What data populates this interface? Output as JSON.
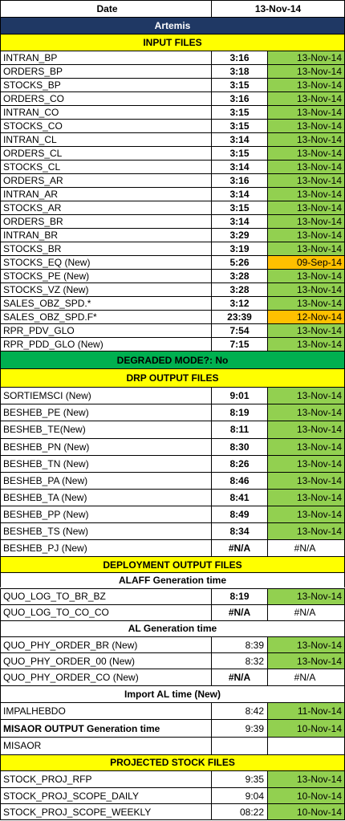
{
  "header": {
    "date_label": "Date",
    "date_value": "13-Nov-14"
  },
  "section_title": "Artemis",
  "input_files": {
    "title": "INPUT FILES",
    "rows": [
      {
        "name": "INTRAN_BP",
        "time": "3:16",
        "date": "13-Nov-14",
        "status": "ok"
      },
      {
        "name": "ORDERS_BP",
        "time": "3:18",
        "date": "13-Nov-14",
        "status": "ok"
      },
      {
        "name": "STOCKS_BP",
        "time": "3:15",
        "date": "13-Nov-14",
        "status": "ok"
      },
      {
        "name": "ORDERS_CO",
        "time": "3:16",
        "date": "13-Nov-14",
        "status": "ok"
      },
      {
        "name": "INTRAN_CO",
        "time": "3:15",
        "date": "13-Nov-14",
        "status": "ok"
      },
      {
        "name": "STOCKS_CO",
        "time": "3:15",
        "date": "13-Nov-14",
        "status": "ok"
      },
      {
        "name": "INTRAN_CL",
        "time": "3:14",
        "date": "13-Nov-14",
        "status": "ok"
      },
      {
        "name": "ORDERS_CL",
        "time": "3:15",
        "date": "13-Nov-14",
        "status": "ok"
      },
      {
        "name": "STOCKS_CL",
        "time": "3:14",
        "date": "13-Nov-14",
        "status": "ok"
      },
      {
        "name": "ORDERS_AR",
        "time": "3:16",
        "date": "13-Nov-14",
        "status": "ok"
      },
      {
        "name": "INTRAN_AR",
        "time": "3:14",
        "date": "13-Nov-14",
        "status": "ok"
      },
      {
        "name": "STOCKS_AR",
        "time": "3:15",
        "date": "13-Nov-14",
        "status": "ok"
      },
      {
        "name": "ORDERS_BR",
        "time": "3:14",
        "date": "13-Nov-14",
        "status": "ok"
      },
      {
        "name": "INTRAN_BR",
        "time": "3:29",
        "date": "13-Nov-14",
        "status": "ok"
      },
      {
        "name": "STOCKS_BR",
        "time": "3:19",
        "date": "13-Nov-14",
        "status": "ok"
      },
      {
        "name": "STOCKS_EQ (New)",
        "time": "5:26",
        "date": "09-Sep-14",
        "status": "warn"
      },
      {
        "name": "STOCKS_PE (New)",
        "time": "3:28",
        "date": "13-Nov-14",
        "status": "ok"
      },
      {
        "name": "STOCKS_VZ (New)",
        "time": "3:28",
        "date": "13-Nov-14",
        "status": "ok"
      },
      {
        "name": "SALES_OBZ_SPD.*",
        "time": "3:12",
        "date": "13-Nov-14",
        "status": "ok"
      },
      {
        "name": "SALES_OBZ_SPD.F*",
        "time": "23:39",
        "date": "12-Nov-14",
        "status": "warn"
      },
      {
        "name": "RPR_PDV_GLO",
        "time": "7:54",
        "date": "13-Nov-14",
        "status": "ok"
      },
      {
        "name": "RPR_PDD_GLO (New)",
        "time": "7:15",
        "date": "13-Nov-14",
        "status": "ok"
      }
    ]
  },
  "degraded_mode": "DEGRADED MODE?: No",
  "drp_output": {
    "title": "DRP OUTPUT FILES",
    "rows": [
      {
        "name": "SORTIEMSCI (New)",
        "time": "9:01",
        "date": "13-Nov-14",
        "status": "ok"
      },
      {
        "name": "BESHEB_PE (New)",
        "time": "8:19",
        "date": "13-Nov-14",
        "status": "ok"
      },
      {
        "name": "BESHEB_TE(New)",
        "time": "8:11",
        "date": "13-Nov-14",
        "status": "ok"
      },
      {
        "name": "BESHEB_PN (New)",
        "time": "8:30",
        "date": "13-Nov-14",
        "status": "ok"
      },
      {
        "name": "BESHEB_TN (New)",
        "time": "8:26",
        "date": "13-Nov-14",
        "status": "ok"
      },
      {
        "name": "BESHEB_PA (New)",
        "time": "8:46",
        "date": "13-Nov-14",
        "status": "ok"
      },
      {
        "name": "BESHEB_TA (New)",
        "time": "8:41",
        "date": "13-Nov-14",
        "status": "ok"
      },
      {
        "name": "BESHEB_PP (New)",
        "time": "8:49",
        "date": "13-Nov-14",
        "status": "ok"
      },
      {
        "name": "BESHEB_TS (New)",
        "time": "8:34",
        "date": "13-Nov-14",
        "status": "ok"
      },
      {
        "name": "BESHEB_PJ (New)",
        "time": "#N/A",
        "date": "#N/A",
        "status": "na"
      }
    ]
  },
  "deployment_output": {
    "title": "DEPLOYMENT OUTPUT FILES"
  },
  "alaff": {
    "title": "ALAFF Generation time",
    "rows": [
      {
        "name": "QUO_LOG_TO_BR_BZ",
        "time": "8:19",
        "date": "13-Nov-14",
        "status": "ok"
      },
      {
        "name": "QUO_LOG_TO_CO_CO",
        "time": "#N/A",
        "date": "#N/A",
        "status": "na"
      }
    ]
  },
  "al_generation": {
    "title": "AL Generation time",
    "rows": [
      {
        "name": "QUO_PHY_ORDER_BR (New)",
        "time": "8:39",
        "date": "13-Nov-14",
        "status": "ok"
      },
      {
        "name": "QUO_PHY_ORDER_00 (New)",
        "time": "8:32",
        "date": "13-Nov-14",
        "status": "ok"
      },
      {
        "name": "QUO_PHY_ORDER_CO (New)",
        "time": "#N/A",
        "date": "#N/A",
        "status": "na"
      }
    ]
  },
  "import_al": {
    "title": "Import AL time (New)",
    "rows": [
      {
        "name": "IMPALHEBDO",
        "time": "8:42",
        "date": "11-Nov-14",
        "status": "ok"
      },
      {
        "name": "MISAOR OUTPUT Generation time",
        "time": "9:39",
        "date": "10-Nov-14",
        "status": "ok",
        "bold": true
      },
      {
        "name": "MISAOR",
        "time": "",
        "date": "",
        "status": "empty"
      }
    ]
  },
  "projected_stock": {
    "title": "PROJECTED STOCK FILES",
    "rows": [
      {
        "name": "STOCK_PROJ_RFP",
        "time": "9:35",
        "date": "13-Nov-14",
        "status": "ok"
      },
      {
        "name": "STOCK_PROJ_SCOPE_DAILY",
        "time": "9:04",
        "date": "10-Nov-14",
        "status": "ok"
      },
      {
        "name": "STOCK_PROJ_SCOPE_WEEKLY",
        "time": "08:22",
        "date": "10-Nov-14",
        "status": "ok"
      }
    ]
  },
  "colors": {
    "title_band": "#1f3864",
    "section_band": "#ffff00",
    "degraded_band": "#00b050",
    "ok": "#92d050",
    "warn": "#ffc000"
  }
}
